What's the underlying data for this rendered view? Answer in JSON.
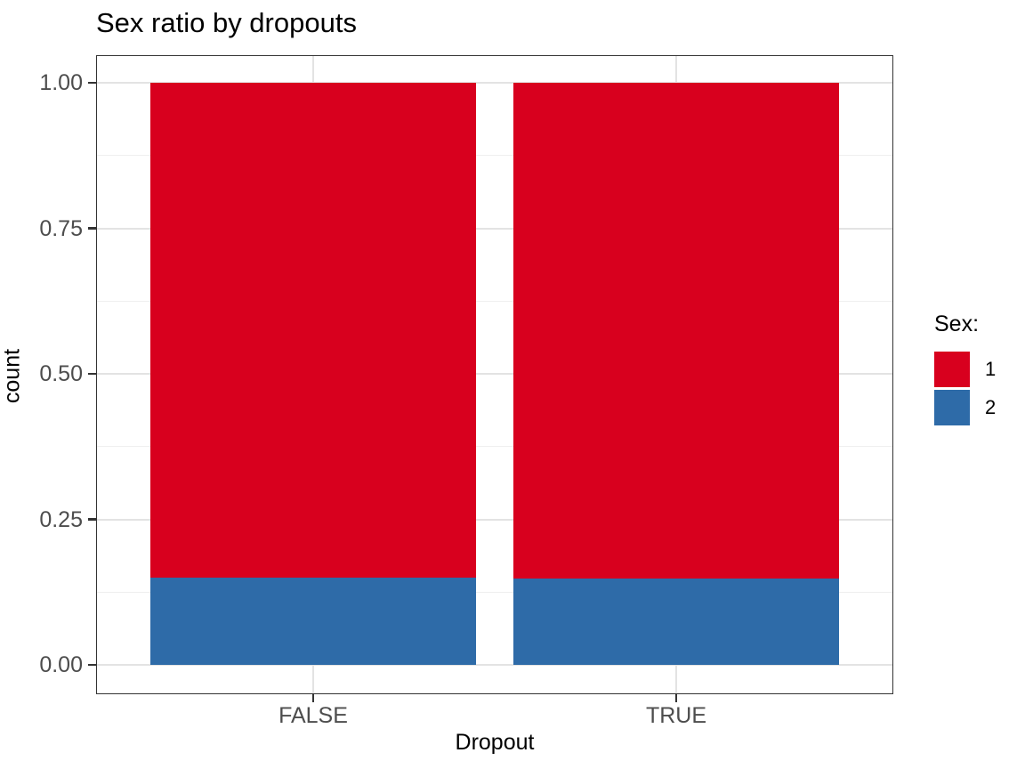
{
  "chart_data": {
    "type": "bar",
    "subtype": "stacked-fill",
    "title": "Sex ratio by dropouts",
    "xlabel": "Dropout",
    "ylabel": "count",
    "categories": [
      "FALSE",
      "TRUE"
    ],
    "series": [
      {
        "name": "1",
        "color": "#d8001e",
        "values": [
          0.85,
          0.852
        ]
      },
      {
        "name": "2",
        "color": "#2e6ba8",
        "values": [
          0.15,
          0.148
        ]
      }
    ],
    "stacking": "first series on top, last on bottom",
    "ylim": [
      0,
      1
    ],
    "yticks": [
      0,
      0.25,
      0.5,
      0.75,
      1
    ],
    "ytick_labels": [
      "0.00",
      "0.25",
      "0.50",
      "0.75",
      "1.00"
    ],
    "grid": {
      "major": true,
      "minor": true
    },
    "legend": {
      "title": "Sex:",
      "position": "right"
    },
    "colors": {
      "panel_border": "#333333",
      "grid_major": "#e3e3e3",
      "grid_minor": "#efefef",
      "tick_label": "#4d4d4d",
      "text": "#000000",
      "background": "#ffffff"
    }
  }
}
